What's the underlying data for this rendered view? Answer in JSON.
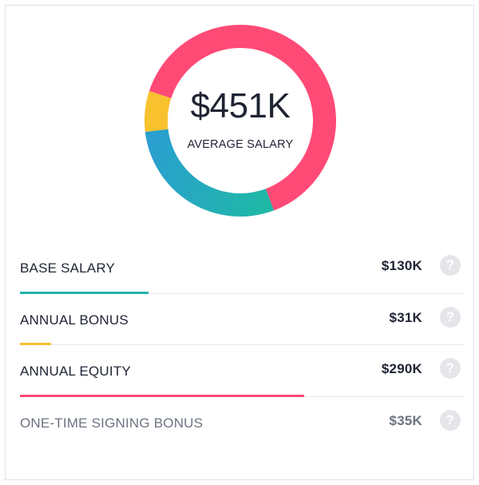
{
  "summary": {
    "amount": "$451K",
    "label": "AVERAGE SALARY"
  },
  "chart_data": {
    "type": "pie",
    "style": "donut",
    "categories": [
      "BASE SALARY",
      "ANNUAL BONUS",
      "ANNUAL EQUITY",
      "ONE-TIME SIGNING BONUS"
    ],
    "values": [
      130,
      31,
      290,
      0
    ],
    "total": 451,
    "colors": [
      "#22b3ad",
      "#f8c12e",
      "#ff4a76",
      "#c9ccd1"
    ]
  },
  "rows": [
    {
      "label": "BASE SALARY",
      "value": "$130K",
      "color": "#22b3ad",
      "share": 0.29,
      "muted": false,
      "help_icon": "question-icon"
    },
    {
      "label": "ANNUAL BONUS",
      "value": "$31K",
      "color": "#f8c12e",
      "share": 0.07,
      "muted": false,
      "help_icon": "question-icon"
    },
    {
      "label": "ANNUAL EQUITY",
      "value": "$290K",
      "color": "#ff4a76",
      "share": 0.64,
      "muted": false,
      "help_icon": "question-icon"
    },
    {
      "label": "ONE-TIME SIGNING BONUS",
      "value": "$35K",
      "color": "",
      "share": 0,
      "muted": true,
      "help_icon": "question-icon"
    }
  ]
}
